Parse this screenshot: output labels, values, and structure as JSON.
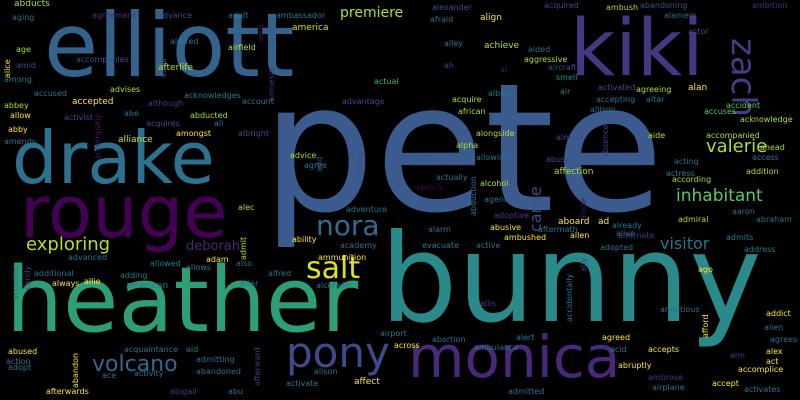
{
  "words": [
    {
      "text": "pete",
      "color": "#3b5b8f"
    },
    {
      "text": "bunny",
      "color": "#2a8a8a"
    },
    {
      "text": "elliott",
      "color": "#33638d"
    },
    {
      "text": "heather",
      "color": "#2d9e75"
    },
    {
      "text": "kiki",
      "color": "#453781"
    },
    {
      "text": "drake",
      "color": "#2c728e"
    },
    {
      "text": "rouge",
      "color": "#440154"
    },
    {
      "text": "monica",
      "color": "#482878"
    },
    {
      "text": "pony",
      "color": "#3e4a89"
    },
    {
      "text": "zach",
      "color": "#433d84"
    },
    {
      "text": "nora",
      "color": "#2f6c8e"
    },
    {
      "text": "salt",
      "color": "#dde318"
    },
    {
      "text": "volcano",
      "color": "#31688e"
    },
    {
      "text": "exploring",
      "color": "#b8de29"
    },
    {
      "text": "valerie",
      "color": "#addc30"
    },
    {
      "text": "inhabitant",
      "color": "#5dc863"
    },
    {
      "text": "carrie",
      "color": "#3e4a89"
    },
    {
      "text": "visitor",
      "color": "#2c728e"
    },
    {
      "text": "premiere",
      "color": "#b5de2b"
    },
    {
      "text": "deborah",
      "color": "#482878"
    },
    {
      "text": "abducts",
      "color": "#addc30"
    },
    {
      "text": "aging",
      "color": "#2c728e"
    },
    {
      "text": "agreement",
      "color": "#46327e"
    },
    {
      "text": "advance",
      "color": "#3e4a89"
    },
    {
      "text": "adult",
      "color": "#2a788e"
    },
    {
      "text": "aang",
      "color": "#471365"
    },
    {
      "text": "ambassador",
      "color": "#2a788e"
    },
    {
      "text": "america",
      "color": "#cde11d"
    },
    {
      "text": "alexander",
      "color": "#3b528b"
    },
    {
      "text": "afraid",
      "color": "#2c728e"
    },
    {
      "text": "align",
      "color": "#fde725"
    },
    {
      "text": "acquired",
      "color": "#3e4a89"
    },
    {
      "text": "ambush",
      "color": "#a5db36"
    },
    {
      "text": "abandoning",
      "color": "#3b528b"
    },
    {
      "text": "alamein",
      "color": "#2f6c8e"
    },
    {
      "text": "ambition",
      "color": "#46327e"
    },
    {
      "text": "actor",
      "color": "#3e4a89"
    },
    {
      "text": "alice",
      "color": "#fde725"
    },
    {
      "text": "age",
      "color": "#addc30"
    },
    {
      "text": "accompanies",
      "color": "#3b528b"
    },
    {
      "text": "affair",
      "color": "#3b528b"
    },
    {
      "text": "alerted",
      "color": "#2a788e"
    },
    {
      "text": "airfield",
      "color": "#b5de2b"
    },
    {
      "text": "amnesia",
      "color": "#46327e"
    },
    {
      "text": "alley",
      "color": "#2a788e"
    },
    {
      "text": "achieve",
      "color": "#b5de2b"
    },
    {
      "text": "aided",
      "color": "#2c728e"
    },
    {
      "text": "aggressive",
      "color": "#b5de2b"
    },
    {
      "text": "aircraft",
      "color": "#3e4a89"
    },
    {
      "text": "smell",
      "color": "#21918c"
    },
    {
      "text": "amid",
      "color": "#3e4a89"
    },
    {
      "text": "afterlife",
      "color": "#b5de2b"
    },
    {
      "text": "ah",
      "color": "#3e4a89"
    },
    {
      "text": "al",
      "color": "#471365"
    },
    {
      "text": "among",
      "color": "#2a788e"
    },
    {
      "text": "accused",
      "color": "#2c728e"
    },
    {
      "text": "advises",
      "color": "#b5de2b"
    },
    {
      "text": "acknowledges",
      "color": "#2a788e"
    },
    {
      "text": "actual",
      "color": "#35b779"
    },
    {
      "text": "albert",
      "color": "#2a788e"
    },
    {
      "text": "air",
      "color": "#2a788e"
    },
    {
      "text": "activated",
      "color": "#3e4a89"
    },
    {
      "text": "agreeing",
      "color": "#b5de2b"
    },
    {
      "text": "alan",
      "color": "#fde725"
    },
    {
      "text": "abbey",
      "color": "#addc30"
    },
    {
      "text": "accepted",
      "color": "#fde725"
    },
    {
      "text": "although",
      "color": "#433d84"
    },
    {
      "text": "account",
      "color": "#2c728e"
    },
    {
      "text": "advantage",
      "color": "#3e4a89"
    },
    {
      "text": "acquire",
      "color": "#b5de2b"
    },
    {
      "text": "accepting",
      "color": "#2c728e"
    },
    {
      "text": "altar",
      "color": "#2c728e"
    },
    {
      "text": "accident",
      "color": "#5dc863"
    },
    {
      "text": "allow",
      "color": "#fde725"
    },
    {
      "text": "activist",
      "color": "#3e4a89"
    },
    {
      "text": "abe",
      "color": "#2c728e"
    },
    {
      "text": "acquires",
      "color": "#3b528b"
    },
    {
      "text": "abducted",
      "color": "#addc30"
    },
    {
      "text": "african",
      "color": "#addc30"
    },
    {
      "text": "allison",
      "color": "#2c728e"
    },
    {
      "text": "accuses",
      "color": "#5dc863"
    },
    {
      "text": "acknowledge",
      "color": "#addc30"
    },
    {
      "text": "abby",
      "color": "#fde725"
    },
    {
      "text": "amends",
      "color": "#2c728e"
    },
    {
      "text": "accompany",
      "color": "#471365"
    },
    {
      "text": "alliance",
      "color": "#cde11d"
    },
    {
      "text": "amongst",
      "color": "#fde725"
    },
    {
      "text": "ali",
      "color": "#2a788e"
    },
    {
      "text": "albright",
      "color": "#3e4a89"
    },
    {
      "text": "add",
      "color": "#3b528b"
    },
    {
      "text": "alongside",
      "color": "#b5de2b"
    },
    {
      "text": "almost",
      "color": "#3e4a89"
    },
    {
      "text": "aide",
      "color": "#b5de2b"
    },
    {
      "text": "accompanied",
      "color": "#b5de2b"
    },
    {
      "text": "ahead",
      "color": "#addc30"
    },
    {
      "text": "access",
      "color": "#2a788e"
    },
    {
      "text": "alpha",
      "color": "#addc30"
    },
    {
      "text": "absence",
      "color": "#433d84"
    },
    {
      "text": "advice",
      "color": "#b5de2b"
    },
    {
      "text": "agree",
      "color": "#2a788e"
    },
    {
      "text": "along",
      "color": "#3e4a89"
    },
    {
      "text": "allowing",
      "color": "#2c728e"
    },
    {
      "text": "abuse",
      "color": "#3e4a89"
    },
    {
      "text": "acting",
      "color": "#2c728e"
    },
    {
      "text": "actress",
      "color": "#2a788e"
    },
    {
      "text": "addition",
      "color": "#b5de2b"
    },
    {
      "text": "affection",
      "color": "#addc30"
    },
    {
      "text": "according",
      "color": "#b5de2b"
    },
    {
      "text": "actually",
      "color": "#2c728e"
    },
    {
      "text": "agency",
      "color": "#440154"
    },
    {
      "text": "alcohol",
      "color": "#b5de2b"
    },
    {
      "text": "abduction",
      "color": "#2c728e"
    },
    {
      "text": "agent",
      "color": "#2c728e"
    },
    {
      "text": "alone",
      "color": "#471365"
    },
    {
      "text": "alec",
      "color": "#b5de2b"
    },
    {
      "text": "adventure",
      "color": "#2a788e"
    },
    {
      "text": "adoptive",
      "color": "#433d84"
    },
    {
      "text": "aboard",
      "color": "#fde725"
    },
    {
      "text": "ad",
      "color": "#fde725"
    },
    {
      "text": "already",
      "color": "#2a788e"
    },
    {
      "text": "admiral",
      "color": "#addc30"
    },
    {
      "text": "aaron",
      "color": "#2c728e"
    },
    {
      "text": "abraham",
      "color": "#2c728e"
    },
    {
      "text": "alive",
      "color": "#2c728e"
    },
    {
      "text": "alternate",
      "color": "#433d84"
    },
    {
      "text": "admit",
      "color": "#b5de2b"
    },
    {
      "text": "ability",
      "color": "#fde725"
    },
    {
      "text": "academy",
      "color": "#2c728e"
    },
    {
      "text": "alarm",
      "color": "#2c728e"
    },
    {
      "text": "abusive",
      "color": "#fde725"
    },
    {
      "text": "aftermath",
      "color": "#2c728e"
    },
    {
      "text": "ambushed",
      "color": "#fde725"
    },
    {
      "text": "ally",
      "color": "#433d84"
    },
    {
      "text": "allen",
      "color": "#fde725"
    },
    {
      "text": "adopted",
      "color": "#2c728e"
    },
    {
      "text": "admits",
      "color": "#2a788e"
    },
    {
      "text": "address",
      "color": "#2a788e"
    },
    {
      "text": "active",
      "color": "#2c728e"
    },
    {
      "text": "evacuate",
      "color": "#2a788e"
    },
    {
      "text": "advanced",
      "color": "#2c728e"
    },
    {
      "text": "adam",
      "color": "#fde725"
    },
    {
      "text": "allowed",
      "color": "#2a788e"
    },
    {
      "text": "allows",
      "color": "#2a788e"
    },
    {
      "text": "also",
      "color": "#2c728e"
    },
    {
      "text": "ammunition",
      "color": "#fde725"
    },
    {
      "text": "accusing",
      "color": "#2c728e"
    },
    {
      "text": "candy",
      "color": "#433d84"
    },
    {
      "text": "additional",
      "color": "#2c728e"
    },
    {
      "text": "always",
      "color": "#fde725"
    },
    {
      "text": "allie",
      "color": "#fde725"
    },
    {
      "text": "adding",
      "color": "#2a788e"
    },
    {
      "text": "american",
      "color": "#2a788e"
    },
    {
      "text": "alter",
      "color": "#2c728e"
    },
    {
      "text": "alfred",
      "color": "#2c728e"
    },
    {
      "text": "alcoholic",
      "color": "#2c728e"
    },
    {
      "text": "allis",
      "color": "#433d84"
    },
    {
      "text": "accidentally",
      "color": "#2c728e"
    },
    {
      "text": "ago",
      "color": "#fde725"
    },
    {
      "text": "afford",
      "color": "#fde725"
    },
    {
      "text": "addict",
      "color": "#fde725"
    },
    {
      "text": "alien",
      "color": "#2c728e"
    },
    {
      "text": "agrees",
      "color": "#2c728e"
    },
    {
      "text": "alex",
      "color": "#fde725"
    },
    {
      "text": "accomplice",
      "color": "#fde725"
    },
    {
      "text": "act",
      "color": "#fde725"
    },
    {
      "text": "aim",
      "color": "#433d84"
    },
    {
      "text": "ambitious",
      "color": "#2c728e"
    },
    {
      "text": "agreed",
      "color": "#fde725"
    },
    {
      "text": "accepts",
      "color": "#fde725"
    },
    {
      "text": "acid",
      "color": "#2c728e"
    },
    {
      "text": "abortion",
      "color": "#2c728e"
    },
    {
      "text": "alert",
      "color": "#2a788e"
    },
    {
      "text": "airport",
      "color": "#2c728e"
    },
    {
      "text": "across",
      "color": "#fde725"
    },
    {
      "text": "ambulance",
      "color": "#2c728e"
    },
    {
      "text": "abused",
      "color": "#fde725"
    },
    {
      "text": "action",
      "color": "#2c728e"
    },
    {
      "text": "adopt",
      "color": "#2c728e"
    },
    {
      "text": "abandon",
      "color": "#fde725"
    },
    {
      "text": "acquaintance",
      "color": "#2c728e"
    },
    {
      "text": "aid",
      "color": "#2c728e"
    },
    {
      "text": "admitting",
      "color": "#2c728e"
    },
    {
      "text": "afterward",
      "color": "#433d84"
    },
    {
      "text": "ace",
      "color": "#2c728e"
    },
    {
      "text": "activity",
      "color": "#2a788e"
    },
    {
      "text": "abandoned",
      "color": "#2c728e"
    },
    {
      "text": "alison",
      "color": "#2c728e"
    },
    {
      "text": "activate",
      "color": "#2c728e"
    },
    {
      "text": "affect",
      "color": "#fde725"
    },
    {
      "text": "abruptly",
      "color": "#fde725"
    },
    {
      "text": "ambrose",
      "color": "#433d84"
    },
    {
      "text": "accept",
      "color": "#fde725"
    },
    {
      "text": "activates",
      "color": "#2c728e"
    },
    {
      "text": "alle",
      "color": "#433d84"
    },
    {
      "text": "afterwards",
      "color": "#fde725"
    },
    {
      "text": "abigail",
      "color": "#433d84"
    },
    {
      "text": "abu",
      "color": "#2c728e"
    },
    {
      "text": "admitted",
      "color": "#2c728e"
    },
    {
      "text": "airplane",
      "color": "#2c728e"
    }
  ]
}
